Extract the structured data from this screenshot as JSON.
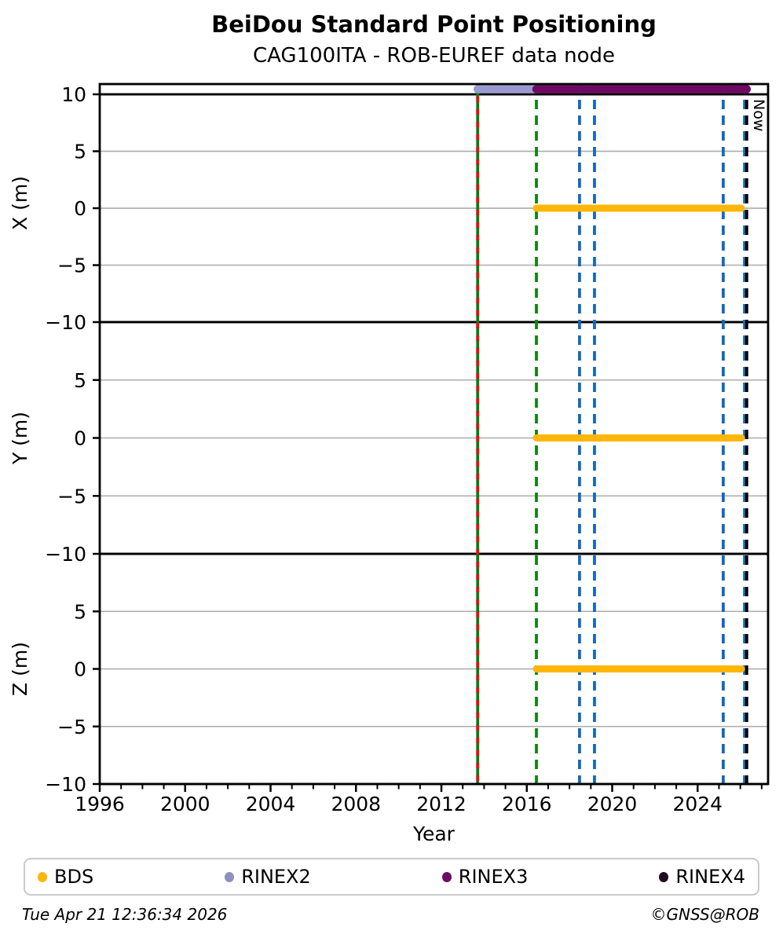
{
  "chart_data": {
    "type": "line",
    "title": "BeiDou Standard Point Positioning",
    "subtitle": "CAG100ITA - ROB-EUREF data node",
    "xlabel": "Year",
    "xlim": [
      1996,
      2027.3
    ],
    "x_major_ticks": [
      1996,
      2000,
      2004,
      2008,
      2012,
      2016,
      2020,
      2024
    ],
    "x_minor_step": 1,
    "grid": {
      "minor_color": "#ababab",
      "major_color": "#000000",
      "legend_border": "#c9c9c9"
    },
    "panels": [
      {
        "ylabel": "X (m)",
        "ylim": [
          -10,
          10.9
        ],
        "yticks": [
          10,
          5,
          0,
          -5,
          -10
        ],
        "grid_minor": [
          5,
          0,
          -5
        ],
        "grid_major": [
          10,
          -10
        ]
      },
      {
        "ylabel": "Y (m)",
        "ylim": [
          -10,
          10
        ],
        "yticks": [
          5,
          0,
          -5,
          -10
        ],
        "grid_minor": [
          5,
          0,
          -5
        ],
        "grid_major": [
          10,
          -10
        ]
      },
      {
        "ylabel": "Z (m)",
        "ylim": [
          -10,
          10
        ],
        "yticks": [
          5,
          0,
          -5,
          -10
        ],
        "grid_minor": [
          5,
          0,
          -5
        ],
        "grid_major": [
          10,
          -10
        ]
      }
    ],
    "series": [
      {
        "name": "BDS",
        "color": "#ffb608",
        "y": 0,
        "x_start": 2016.45,
        "x_end": 2026.05,
        "panels": [
          0,
          1,
          2
        ]
      }
    ],
    "availability_bars": [
      {
        "name": "RINEX2",
        "color": "#9a9ad0",
        "x_start": 2013.7,
        "x_end": 2016.45,
        "panel": 0,
        "y": 10.45
      },
      {
        "name": "RINEX3",
        "color": "#6e0863",
        "x_start": 2016.45,
        "x_end": 2026.3,
        "panel": 0,
        "y": 10.45
      }
    ],
    "event_lines": [
      {
        "x": 2013.7,
        "color": "#0d7a0d",
        "style": "solid",
        "label": ""
      },
      {
        "x": 2013.7,
        "color": "#e01010",
        "style": "dashed",
        "label": ""
      },
      {
        "x": 2016.45,
        "color": "#0e860e",
        "style": "dashed",
        "label": ""
      },
      {
        "x": 2018.47,
        "color": "#1668bd",
        "style": "dashed",
        "label": ""
      },
      {
        "x": 2019.17,
        "color": "#1668bd",
        "style": "dashed",
        "label": ""
      },
      {
        "x": 2025.2,
        "color": "#1668bd",
        "style": "dashed",
        "label": ""
      },
      {
        "x": 2026.2,
        "color": "#1668bd",
        "style": "dashed",
        "label": ""
      },
      {
        "x": 2026.3,
        "color": "#000000",
        "style": "dashed",
        "label": "Now"
      }
    ]
  },
  "legend": {
    "items": [
      {
        "label": "BDS",
        "color": "#ffb608"
      },
      {
        "label": "RINEX2",
        "color": "#8f8fc2"
      },
      {
        "label": "RINEX3",
        "color": "#6d0c64"
      },
      {
        "label": "RINEX4",
        "color": "#210a21"
      }
    ]
  },
  "footer": {
    "timestamp": "Tue Apr 21 12:36:34 2026",
    "copyright": "©GNSS@ROB"
  }
}
